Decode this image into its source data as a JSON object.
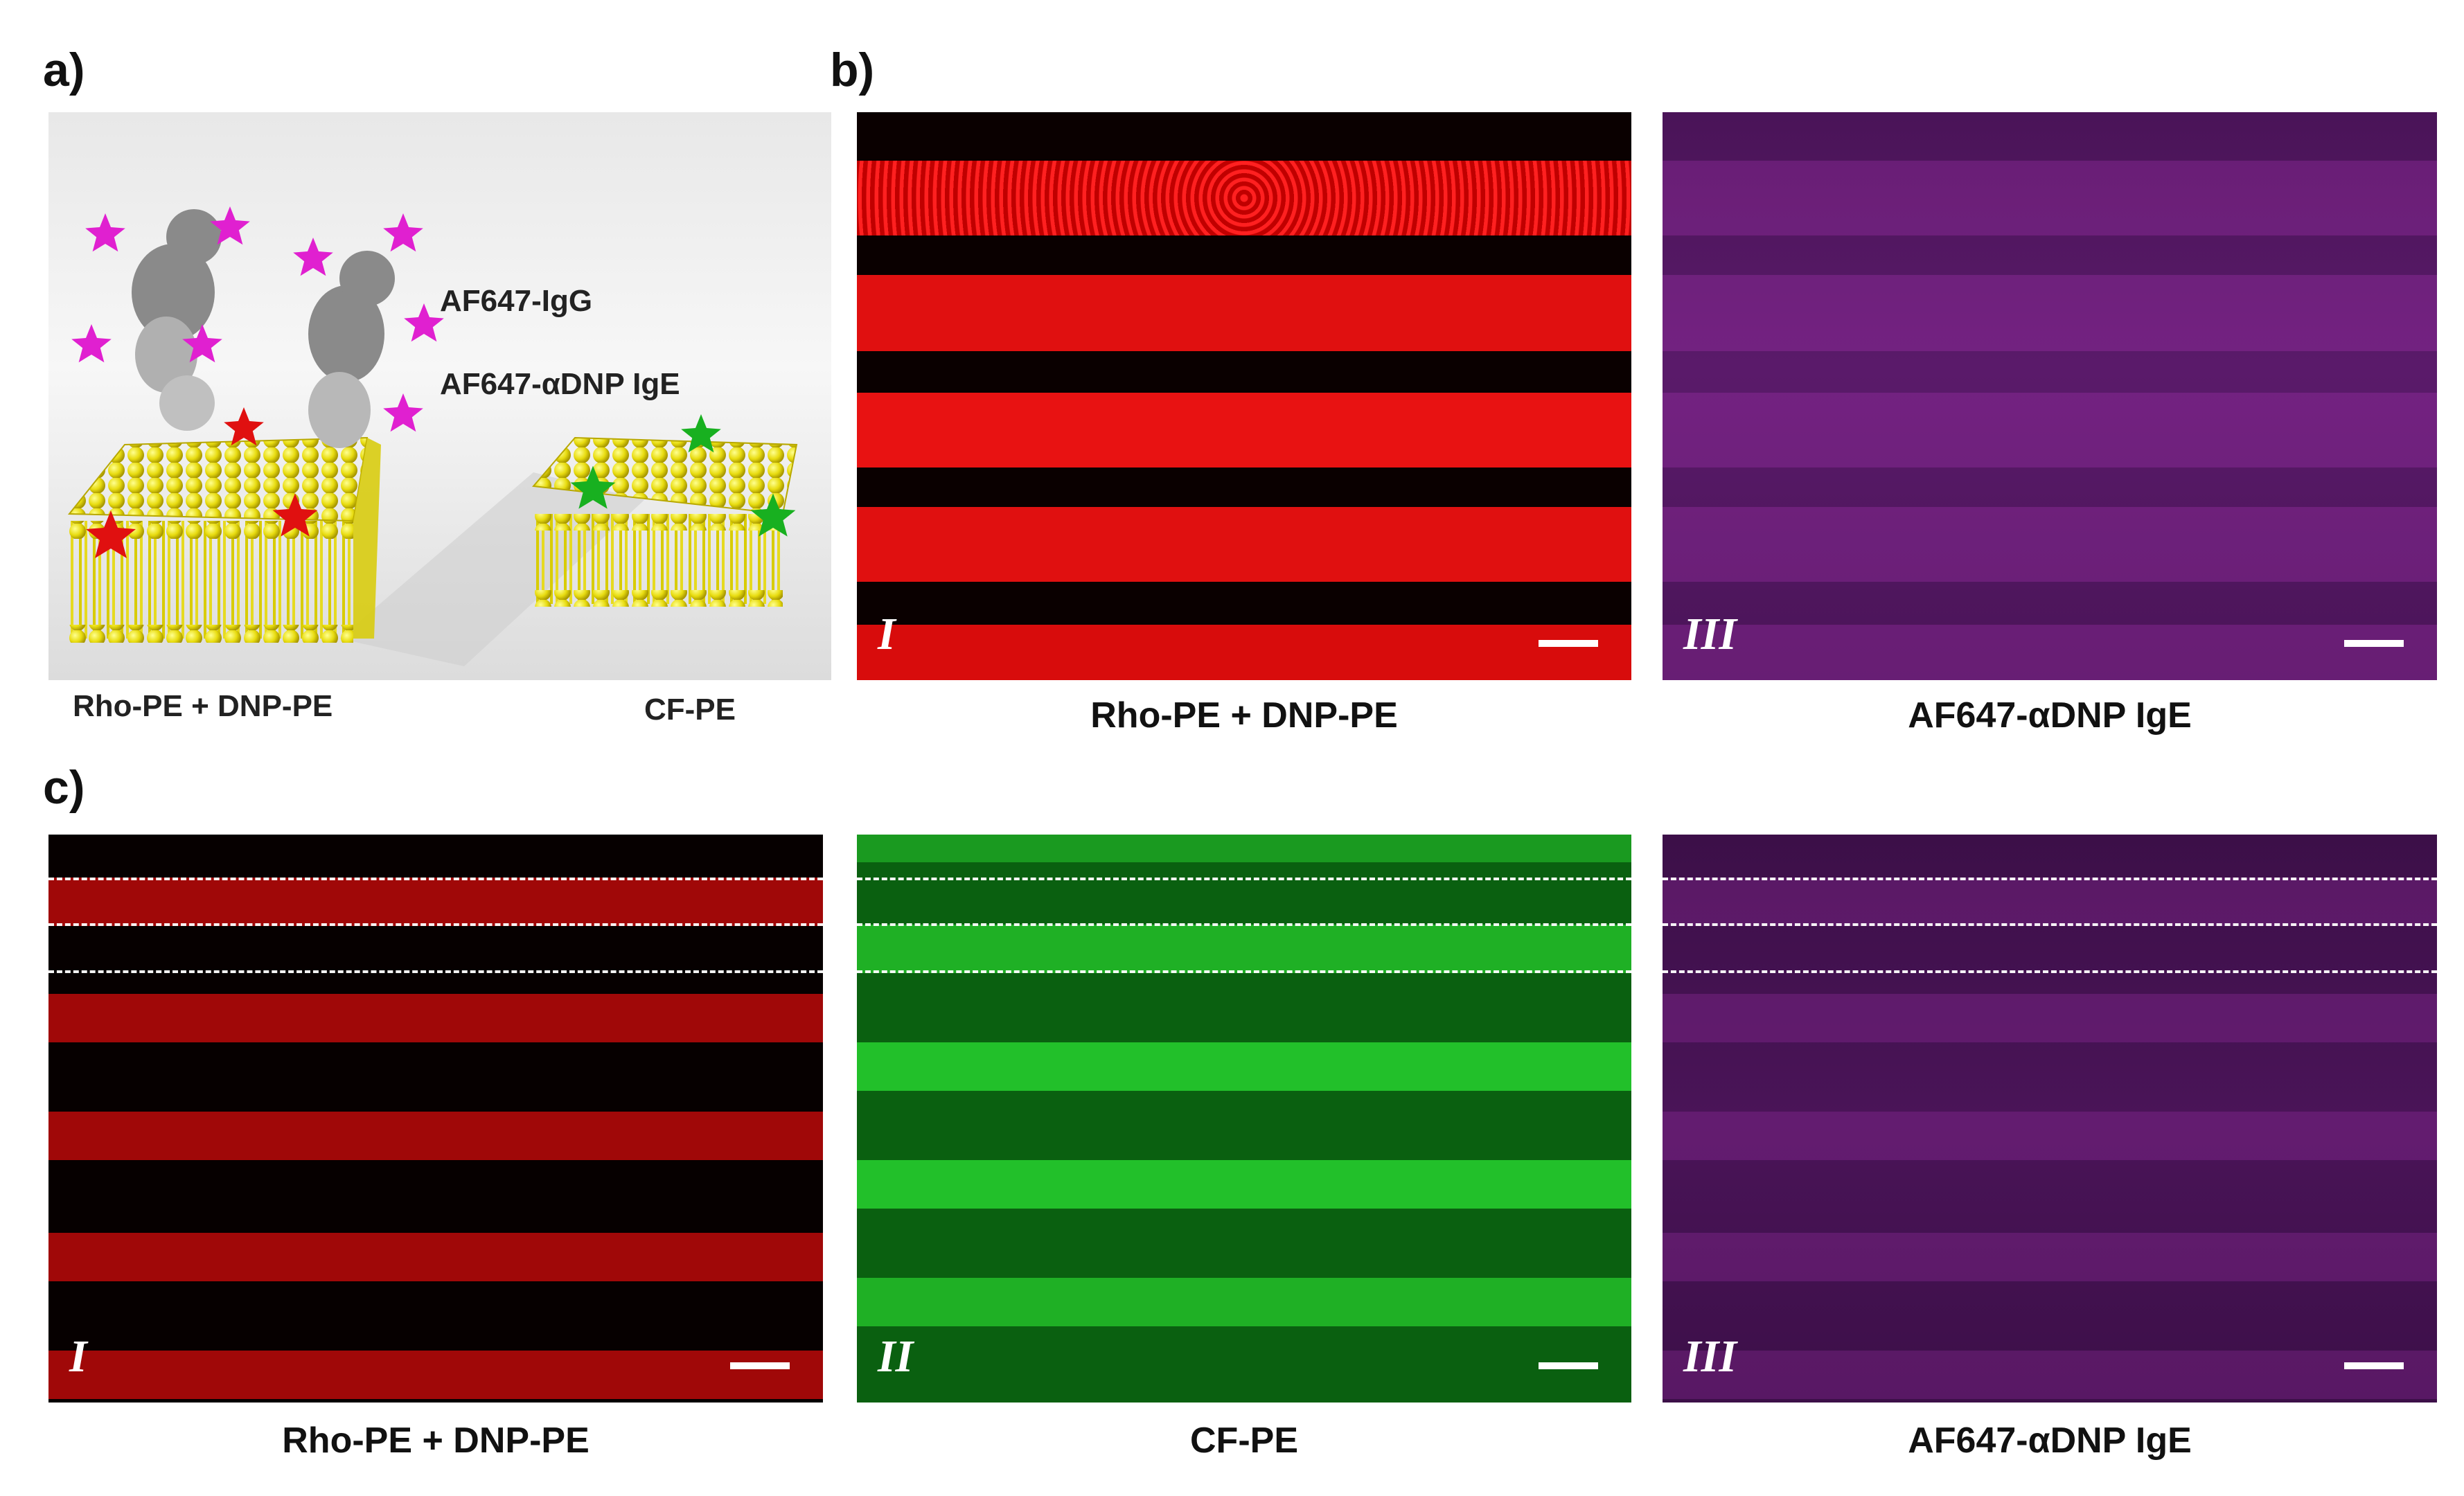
{
  "panel_labels": {
    "a": "a)",
    "b": "b)",
    "c": "c)"
  },
  "schematic": {
    "label_igg": "AF647-IgG",
    "label_ige": "AF647-αDNP IgE",
    "caption_left": "Rho-PE + DNP-PE",
    "caption_right": "CF-PE"
  },
  "panel_b": {
    "images": [
      {
        "numeral": "I",
        "caption": "Rho-PE + DNP-PE",
        "color": "#ff1a1a"
      },
      {
        "numeral": "III",
        "caption": "AF647-αDNP IgE",
        "color": "#b030c0"
      }
    ]
  },
  "panel_c": {
    "images": [
      {
        "numeral": "I",
        "caption": "Rho-PE + DNP-PE",
        "color": "#ff2020"
      },
      {
        "numeral": "II",
        "caption": "CF-PE",
        "color": "#22ee33"
      },
      {
        "numeral": "III",
        "caption": "AF647-αDNP IgE",
        "color": "#b030c0"
      }
    ]
  }
}
